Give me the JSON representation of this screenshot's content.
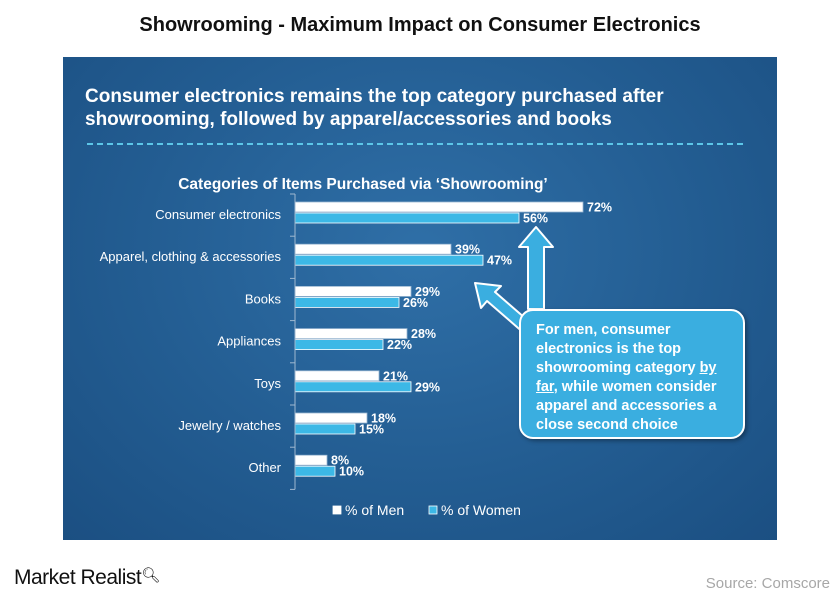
{
  "page_title": "Showrooming - Maximum Impact on Consumer Electronics",
  "headline": "Consumer electronics remains the top category purchased after showrooming, followed by apparel/accessories and books",
  "callout": {
    "text_before": "For men, consumer electronics is the top showrooming category ",
    "text_underlined": "by far",
    "text_after": ", while women consider apparel and accessories a close second choice"
  },
  "brand": "Market Realist",
  "source": "Source: Comscore",
  "colors": {
    "panel": "#235d92",
    "men_bar": "#ffffff",
    "women_bar": "#3cb8e6",
    "callout": "#3aaee0",
    "rule": "#5cc6e8"
  },
  "chart_data": {
    "type": "bar",
    "orientation": "horizontal",
    "title": "Categories of Items Purchased via ‘Showrooming’",
    "categories": [
      "Consumer electronics",
      "Apparel, clothing & accessories",
      "Books",
      "Appliances",
      "Toys",
      "Jewelry / watches",
      "Other"
    ],
    "series": [
      {
        "name": "% of Men",
        "values": [
          72,
          39,
          29,
          28,
          21,
          18,
          8
        ]
      },
      {
        "name": "% of Women",
        "values": [
          56,
          47,
          26,
          22,
          29,
          15,
          10
        ]
      }
    ],
    "value_suffix": "%",
    "xlim": [
      0,
      100
    ],
    "grid": false,
    "legend_position": "bottom"
  }
}
